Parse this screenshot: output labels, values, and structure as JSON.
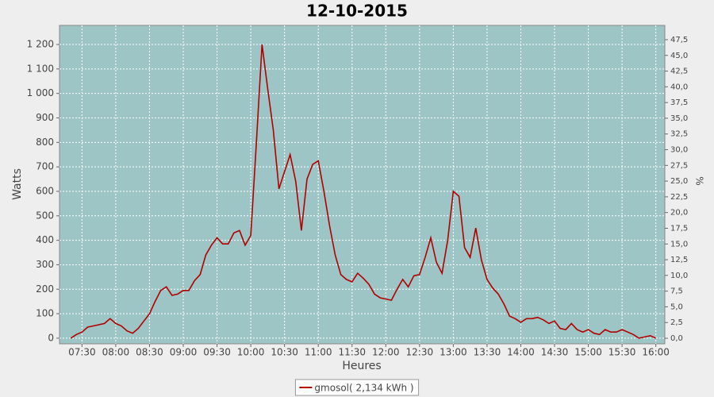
{
  "chart_data": {
    "type": "line",
    "title": "12-10-2015",
    "x_label": "Heures",
    "y_label": "Watts",
    "y2_label": "%",
    "xlim": [
      "07:10",
      "16:08"
    ],
    "xticks": [
      "07:30",
      "08:00",
      "08:30",
      "09:00",
      "09:30",
      "10:00",
      "10:30",
      "11:00",
      "11:30",
      "12:00",
      "12:30",
      "13:00",
      "13:30",
      "14:00",
      "14:30",
      "15:00",
      "15:30",
      "16:00"
    ],
    "ylim": [
      -23,
      1278
    ],
    "yticks": [
      0,
      100,
      200,
      300,
      400,
      500,
      600,
      700,
      800,
      900,
      {
        "value": 1000,
        "label": "1 000"
      },
      {
        "value": 1100,
        "label": "1 100"
      },
      {
        "value": 1200,
        "label": "1 200"
      }
    ],
    "y2lim": [
      -0.88,
      49.77
    ],
    "y2ticks": [
      {
        "value": 0,
        "label": "0,0"
      },
      {
        "value": 2.5,
        "label": "2,5"
      },
      {
        "value": 5,
        "label": "5,0"
      },
      {
        "value": 7.5,
        "label": "7,5"
      },
      {
        "value": 10,
        "label": "10,0"
      },
      {
        "value": 12.5,
        "label": "12,5"
      },
      {
        "value": 15,
        "label": "15,0"
      },
      {
        "value": 17.5,
        "label": "17,5"
      },
      {
        "value": 20,
        "label": "20,0"
      },
      {
        "value": 22.5,
        "label": "22,5"
      },
      {
        "value": 25,
        "label": "25,0"
      },
      {
        "value": 27.5,
        "label": "27,5"
      },
      {
        "value": 30,
        "label": "30,0"
      },
      {
        "value": 32.5,
        "label": "32,5"
      },
      {
        "value": 35,
        "label": "35,0"
      },
      {
        "value": 37.5,
        "label": "37,5"
      },
      {
        "value": 40,
        "label": "40,0"
      },
      {
        "value": 42.5,
        "label": "42,5"
      },
      {
        "value": 45,
        "label": "45,0"
      },
      {
        "value": 47.5,
        "label": "47,5"
      }
    ],
    "grid": true,
    "legend": "bottom",
    "x": [
      "07:20",
      "07:25",
      "07:30",
      "07:35",
      "07:40",
      "07:45",
      "07:50",
      "07:55",
      "08:00",
      "08:05",
      "08:10",
      "08:15",
      "08:20",
      "08:25",
      "08:30",
      "08:35",
      "08:40",
      "08:45",
      "08:50",
      "08:55",
      "09:00",
      "09:05",
      "09:10",
      "09:15",
      "09:20",
      "09:25",
      "09:30",
      "09:35",
      "09:40",
      "09:45",
      "09:50",
      "09:55",
      "10:00",
      "10:05",
      "10:10",
      "10:15",
      "10:20",
      "10:25",
      "10:30",
      "10:35",
      "10:40",
      "10:45",
      "10:50",
      "10:55",
      "11:00",
      "11:05",
      "11:10",
      "11:15",
      "11:20",
      "11:25",
      "11:30",
      "11:35",
      "11:40",
      "11:45",
      "11:50",
      "11:55",
      "12:00",
      "12:05",
      "12:10",
      "12:15",
      "12:20",
      "12:25",
      "12:30",
      "12:35",
      "12:40",
      "12:45",
      "12:50",
      "12:55",
      "13:00",
      "13:05",
      "13:10",
      "13:15",
      "13:20",
      "13:25",
      "13:30",
      "13:35",
      "13:40",
      "13:45",
      "13:50",
      "13:55",
      "14:00",
      "14:05",
      "14:10",
      "14:15",
      "14:20",
      "14:25",
      "14:30",
      "14:35",
      "14:40",
      "14:45",
      "14:50",
      "14:55",
      "15:00",
      "15:05",
      "15:10",
      "15:15",
      "15:20",
      "15:25",
      "15:30",
      "15:35",
      "15:40",
      "15:45",
      "15:50",
      "15:55",
      "16:00"
    ],
    "series": [
      {
        "name": "gmosol( 2,134 kWh )",
        "color": "#b00000",
        "values": [
          0,
          15,
          25,
          45,
          50,
          55,
          60,
          80,
          60,
          50,
          30,
          20,
          40,
          70,
          100,
          150,
          195,
          210,
          175,
          180,
          195,
          195,
          235,
          260,
          340,
          380,
          410,
          385,
          385,
          430,
          440,
          380,
          420,
          800,
          1200,
          1020,
          850,
          610,
          680,
          750,
          640,
          440,
          650,
          710,
          725,
          600,
          460,
          340,
          260,
          240,
          230,
          265,
          245,
          220,
          180,
          165,
          160,
          155,
          200,
          240,
          210,
          255,
          260,
          330,
          410,
          310,
          265,
          400,
          600,
          580,
          370,
          330,
          450,
          320,
          240,
          205,
          180,
          140,
          90,
          80,
          65,
          80,
          80,
          85,
          75,
          60,
          70,
          40,
          35,
          60,
          35,
          25,
          35,
          20,
          15,
          35,
          25,
          25,
          35,
          25,
          15,
          0,
          5,
          10,
          0
        ]
      }
    ]
  }
}
